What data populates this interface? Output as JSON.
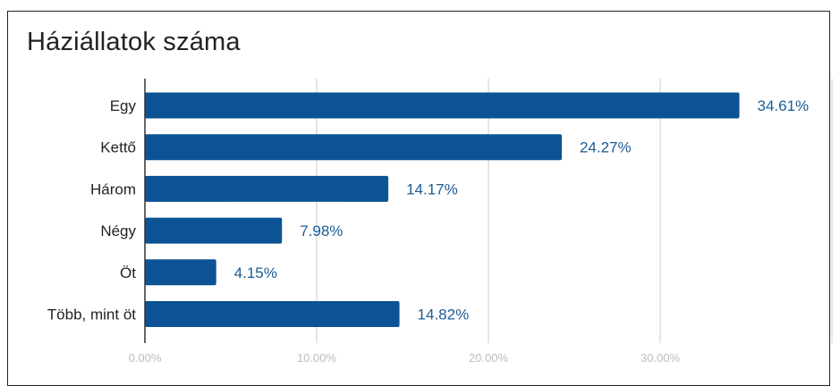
{
  "chart_data": {
    "type": "bar",
    "orientation": "horizontal",
    "title": "Háziállatok száma",
    "categories": [
      "Egy",
      "Kettő",
      "Három",
      "Négy",
      "Öt",
      "Több, mint öt"
    ],
    "values": [
      34.61,
      24.27,
      14.17,
      7.98,
      4.15,
      14.82
    ],
    "value_labels": [
      "34.61%",
      "24.27%",
      "14.17%",
      "7.98%",
      "4.15%",
      "14.82%"
    ],
    "xlim": [
      0,
      40
    ],
    "x_ticks": [
      0,
      10,
      20,
      30
    ],
    "x_tick_labels": [
      "0.00%",
      "10.00%",
      "20.00%",
      "30.00%"
    ],
    "grid": true,
    "legend": "none",
    "bar_color": "#0b5394",
    "value_label_color": "#1a5b95",
    "grid_color": "#cccccc",
    "tick_label_color": "#bdbdbd"
  }
}
